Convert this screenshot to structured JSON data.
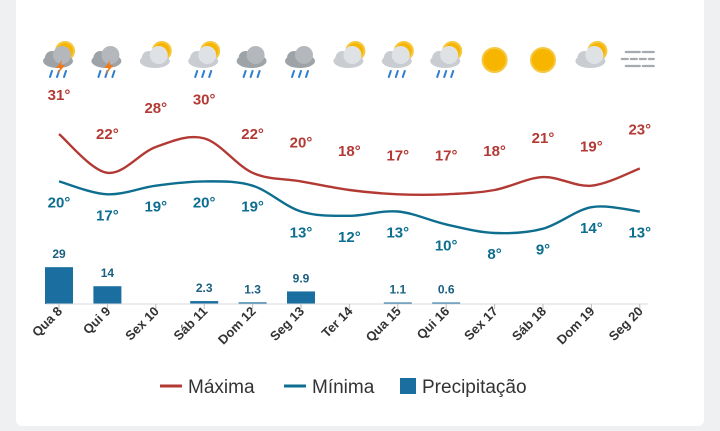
{
  "chart_data": {
    "type": "line",
    "categories": [
      "Qua 8",
      "Qui 9",
      "Sex 10",
      "Sáb 11",
      "Dom 12",
      "Seg 13",
      "Ter 14",
      "Qua 15",
      "Qui 16",
      "Sex 17",
      "Sáb 18",
      "Dom 19",
      "Seg 20"
    ],
    "icons": [
      "sun-cloud-thunder-rain-icon",
      "cloud-thunder-rain-icon",
      "sun-cloud-icon",
      "sun-cloud-rain-icon",
      "cloud-rain-icon",
      "cloud-rain-icon",
      "sun-cloud-icon",
      "sun-cloud-rain-icon",
      "sun-cloud-rain-icon",
      "sun-icon",
      "sun-icon",
      "sun-cloud-icon",
      "fog-icon"
    ],
    "max_labels": [
      "31°",
      "22°",
      "28°",
      "30°",
      "22°",
      "20°",
      "18°",
      "17°",
      "17°",
      "18°",
      "21°",
      "19°",
      "23°"
    ],
    "min_labels": [
      "20°",
      "17°",
      "19°",
      "20°",
      "19°",
      "13°",
      "12°",
      "13°",
      "10°",
      "8°",
      "9°",
      "14°",
      "13°"
    ],
    "precip_labels": [
      "29",
      "14",
      "",
      "2.3",
      "1.3",
      "9.9",
      "",
      "1.1",
      "0.6",
      "",
      "",
      "",
      ""
    ],
    "series": [
      {
        "name": "Máxima",
        "color": "#b33a34",
        "values": [
          31,
          22,
          28,
          30,
          22,
          20,
          18,
          17,
          17,
          18,
          21,
          19,
          23
        ]
      },
      {
        "name": "Mínima",
        "color": "#0d6e8f",
        "values": [
          20,
          17,
          19,
          20,
          19,
          13,
          12,
          13,
          10,
          8,
          9,
          14,
          13
        ]
      },
      {
        "name": "Precipitação",
        "color": "#1a6fa0",
        "type": "bar",
        "values": [
          29,
          14,
          0,
          2.3,
          1.3,
          9.9,
          0,
          1.1,
          0.6,
          0,
          0,
          0,
          0
        ]
      }
    ],
    "legend_position": "bottom",
    "grid": false
  }
}
